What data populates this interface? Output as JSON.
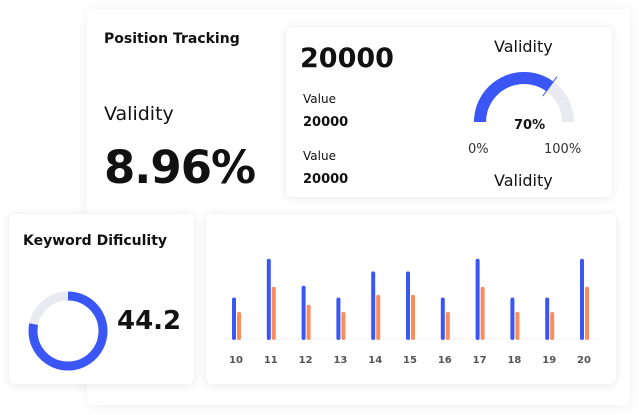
{
  "position_tracking": {
    "title": "Position Tracking",
    "label": "Validity",
    "value": "8.96%"
  },
  "validity_card": {
    "headline": "20000",
    "rows": [
      {
        "label": "Value",
        "value": "20000"
      },
      {
        "label": "Value",
        "value": "20000"
      }
    ],
    "gauge": {
      "title": "Validity",
      "bottom_label": "Validity",
      "percent_label": "70%",
      "percent": 70,
      "min_label": "0%",
      "max_label": "100%"
    }
  },
  "keyword_difficulty": {
    "title": "Keyword Dificulity",
    "value": "44.2",
    "fraction": 0.78
  },
  "colors": {
    "blue": "#3a57f5",
    "orange": "#fb8c5e",
    "track": "#e8eaef"
  },
  "chart_data": {
    "type": "bar",
    "categories": [
      "10",
      "11",
      "12",
      "13",
      "14",
      "15",
      "16",
      "17",
      "18",
      "19",
      "20"
    ],
    "series": [
      {
        "values": [
          45,
          88,
          58,
          45,
          74,
          74,
          45,
          88,
          45,
          45,
          88
        ]
      },
      {
        "values": [
          29,
          57,
          37,
          29,
          48,
          48,
          29,
          57,
          29,
          29,
          57
        ]
      }
    ],
    "ylim": [
      0,
      100
    ]
  }
}
